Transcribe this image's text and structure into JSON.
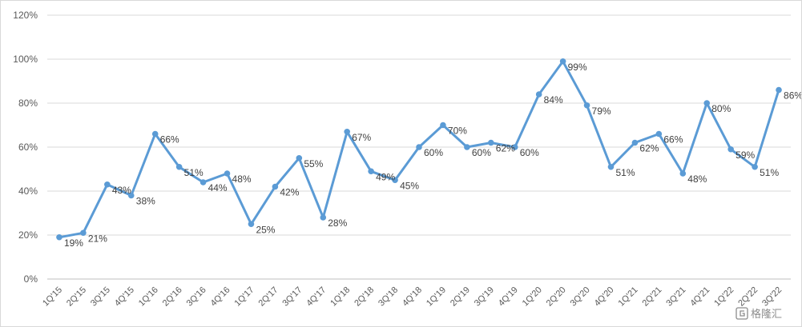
{
  "chart_data": {
    "type": "line",
    "title": "",
    "xlabel": "",
    "ylabel": "",
    "ylim": [
      0,
      120
    ],
    "y_ticks": [
      0,
      20,
      40,
      60,
      80,
      100,
      120
    ],
    "y_tick_suffix": "%",
    "grid": "horizontal",
    "legend": "none",
    "line_color": "#5b9bd5",
    "categories": [
      "1Q'15",
      "2Q'15",
      "3Q'15",
      "4Q'15",
      "1Q'16",
      "2Q'16",
      "3Q'16",
      "4Q'16",
      "1Q'17",
      "2Q'17",
      "3Q'17",
      "4Q'17",
      "1Q'18",
      "2Q'18",
      "3Q'18",
      "4Q'18",
      "1Q'19",
      "2Q'19",
      "3Q'19",
      "4Q'19",
      "1Q'20",
      "2Q'20",
      "3Q'20",
      "4Q'20",
      "1Q'21",
      "2Q'21",
      "3Q'21",
      "4Q'21",
      "1Q'22",
      "2Q'22",
      "3Q'22"
    ],
    "series": [
      {
        "values": [
          19,
          21,
          43,
          38,
          66,
          51,
          44,
          48,
          25,
          42,
          55,
          28,
          67,
          49,
          45,
          60,
          70,
          60,
          62,
          60,
          84,
          99,
          79,
          51,
          62,
          66,
          48,
          80,
          59,
          51,
          86
        ],
        "labels": [
          "19%",
          "21%",
          "43%",
          "38%",
          "66%",
          "51%",
          "44%",
          "48%",
          "25%",
          "42%",
          "55%",
          "28%",
          "67%",
          "49%",
          "45%",
          "60%",
          "70%",
          "60%",
          "62%",
          "60%",
          "84%",
          "99%",
          "79%",
          "51%",
          "62%",
          "66%",
          "48%",
          "80%",
          "59%",
          "51%",
          "86%"
        ]
      }
    ]
  },
  "watermark": {
    "icon": "gelonghui-logo-icon",
    "text": "格隆汇"
  }
}
